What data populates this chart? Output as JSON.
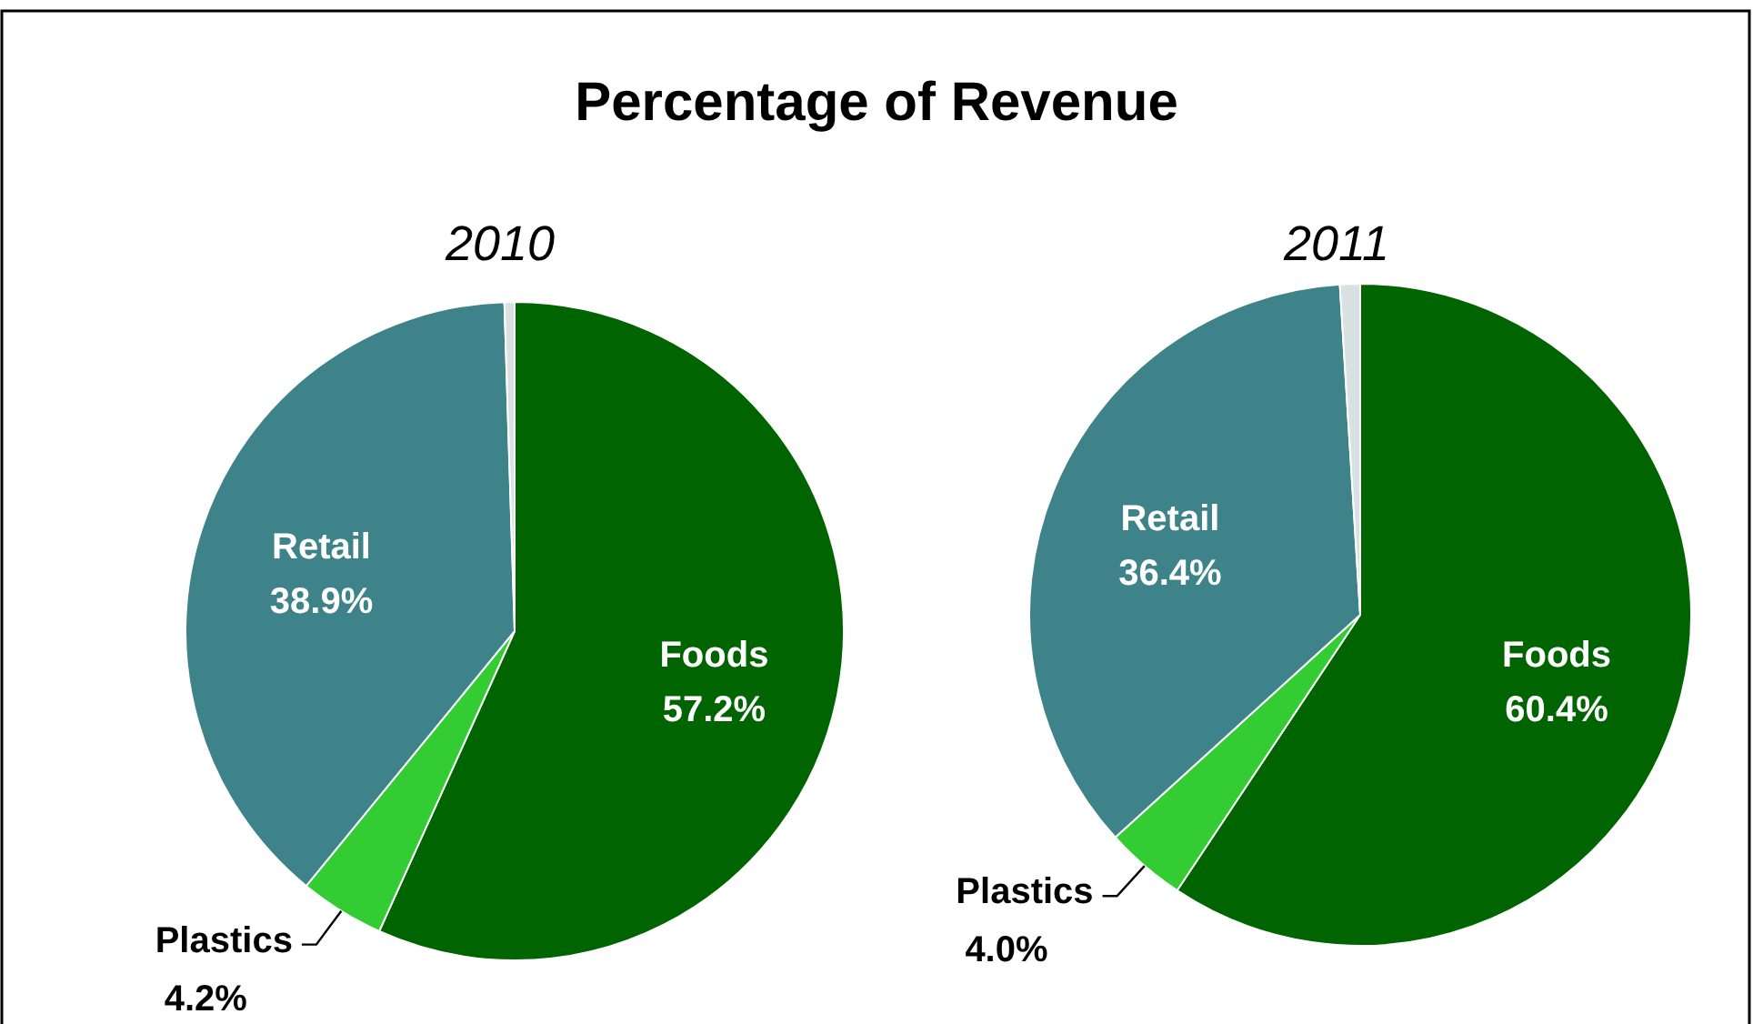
{
  "chart_data": [
    {
      "type": "pie",
      "title": "Percentage of Revenue",
      "subtitle": "2010",
      "categories": [
        "Foods",
        "Plastics",
        "Retail",
        null
      ],
      "values": [
        57.2,
        4.2,
        38.9,
        0.5
      ],
      "colors": [
        "#006400",
        "#33cc33",
        "#3d8389",
        "#d9e1e2"
      ],
      "value_labels": [
        "57.2%",
        "4.2%",
        "38.9%",
        null
      ]
    },
    {
      "type": "pie",
      "subtitle": "2011",
      "categories": [
        "Foods",
        "Plastics",
        "Retail",
        null
      ],
      "values": [
        60.4,
        4.0,
        36.4,
        1.0
      ],
      "colors": [
        "#006400",
        "#33cc33",
        "#3d8389",
        "#d9e1e2"
      ],
      "value_labels": [
        "60.4%",
        "4.0%",
        "36.4%",
        null
      ]
    }
  ]
}
